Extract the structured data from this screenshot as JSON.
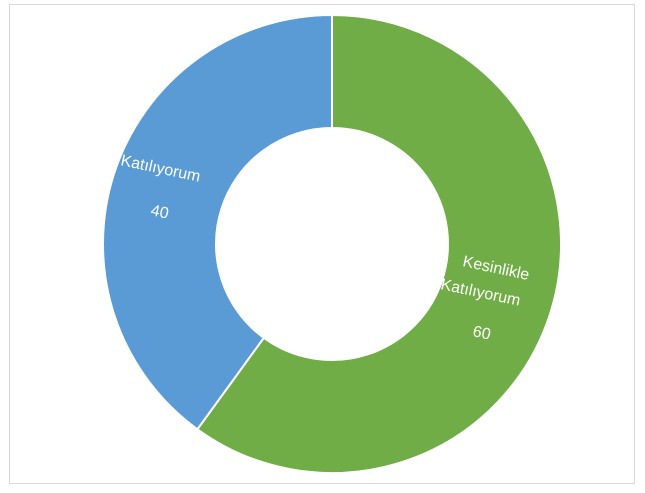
{
  "chart_data": {
    "type": "pie",
    "donut": true,
    "title": "",
    "legend": "none",
    "series": [
      {
        "name": "",
        "values": [
          {
            "label": "Kesinlikle Katılıyorum",
            "value": 60,
            "value_text": "60",
            "color": "#70ad47"
          },
          {
            "label": "Katılıyorum",
            "value": 40,
            "value_text": "40",
            "color": "#5b9bd5"
          }
        ]
      }
    ]
  },
  "labels": {
    "slice0_line1": "Kesinlikle",
    "slice0_line2": "Katılıyorum",
    "slice0_value": "60",
    "slice1_line1": "Katılıyorum",
    "slice1_value": "40"
  }
}
